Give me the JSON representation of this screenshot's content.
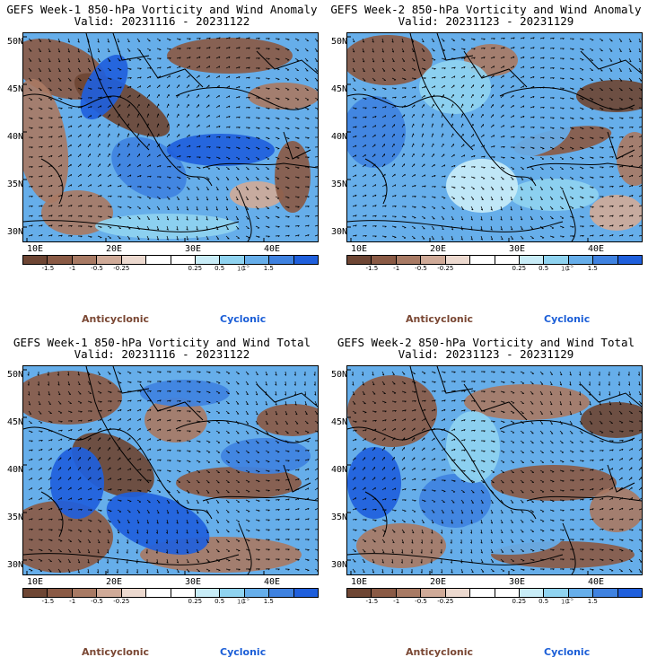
{
  "colors": {
    "anticyclonic": "#7a4733",
    "cyclonic": "#1b5ed7",
    "scale": [
      "#6e4634",
      "#8a5a45",
      "#a87a64",
      "#cfaa98",
      "#ecd9cf",
      "#ffffff",
      "#ffffff",
      "#c8ecf7",
      "#8fd3f0",
      "#66aeea",
      "#3f82e0",
      "#1f5fdc"
    ]
  },
  "axis": {
    "lat_labels": [
      "50N",
      "45N",
      "40N",
      "35N",
      "30N"
    ],
    "lon_labels": [
      "10E",
      "20E",
      "30E",
      "40E"
    ]
  },
  "colorbar": {
    "labels": [
      "-1.5",
      "-1",
      "-0.5",
      "-0.25",
      "0.25",
      "0.5",
      "1",
      "1.5"
    ],
    "units": "10",
    "units_exp": "-5"
  },
  "legend": {
    "anticyclonic": "Anticyclonic",
    "cyclonic": "Cyclonic"
  },
  "panels": [
    {
      "title": "GEFS Week-1 850-hPa Vorticity and Wind Anomaly",
      "valid": "Valid: 20231116 - 20231122"
    },
    {
      "title": "GEFS Week-2 850-hPa Vorticity and Wind Anomaly",
      "valid": "Valid: 20231123 - 20231129"
    },
    {
      "title": "GEFS Week-1 850-hPa Vorticity and Wind Total",
      "valid": "Valid: 20231116 - 20231122"
    },
    {
      "title": "GEFS Week-2 850-hPa Vorticity and Wind Total",
      "valid": "Valid: 20231123 - 20231129"
    }
  ]
}
